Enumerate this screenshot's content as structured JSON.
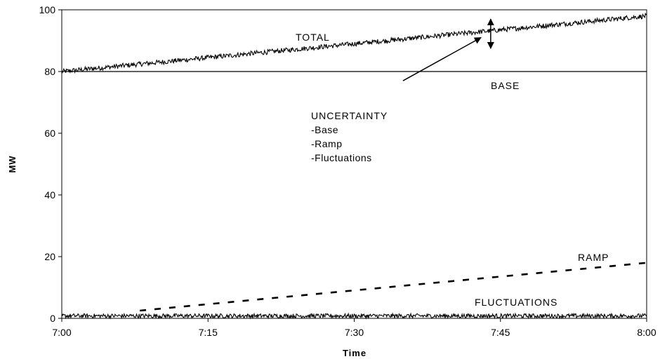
{
  "chart_data": {
    "type": "line",
    "title": "",
    "xlabel": "Time",
    "ylabel": "MW",
    "x_ticks": [
      "7:00",
      "7:15",
      "7:30",
      "7:45",
      "8:00"
    ],
    "x_range_minutes": [
      0,
      60
    ],
    "y_ticks": [
      "0",
      "20",
      "40",
      "60",
      "80",
      "100"
    ],
    "ylim": [
      0,
      100
    ],
    "grid": false,
    "series": [
      {
        "name": "TOTAL",
        "style": "noisy",
        "x": [
          0,
          60
        ],
        "y": [
          80,
          98
        ],
        "noise_amplitude": 0.8
      },
      {
        "name": "BASE",
        "style": "solid",
        "x": [
          0,
          60
        ],
        "y": [
          80,
          80
        ]
      },
      {
        "name": "RAMP",
        "style": "dashed",
        "x": [
          8,
          60
        ],
        "y": [
          2.5,
          18
        ]
      },
      {
        "name": "FLUCTUATIONS",
        "style": "noisy",
        "x": [
          0,
          60
        ],
        "y": [
          0.8,
          0.8
        ],
        "noise_amplitude": 0.7
      }
    ],
    "annotations": {
      "uncertainty_title": "UNCERTAINTY",
      "uncertainty_items": [
        "-Base",
        "-Ramp",
        "-Fluctuations"
      ],
      "uncertainty_arrow": {
        "from": [
          35,
          77
        ],
        "to": [
          43,
          91
        ]
      },
      "uncertainty_range": {
        "x": 44,
        "y": [
          87.5,
          97
        ]
      }
    },
    "colors": {
      "line": "#000000",
      "background": "#ffffff"
    }
  }
}
